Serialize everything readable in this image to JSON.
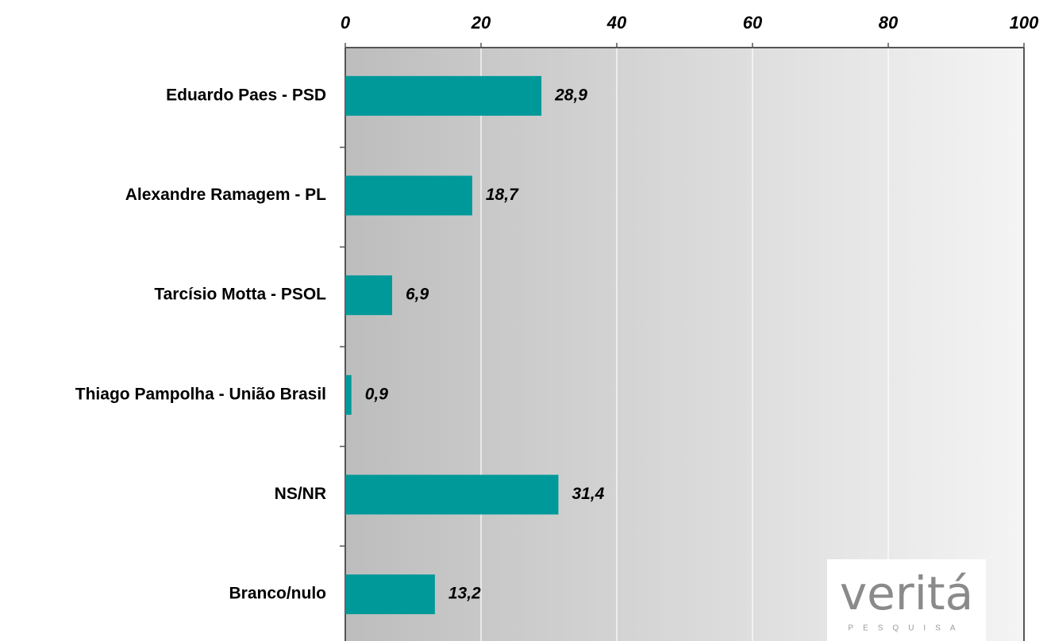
{
  "chart_data": {
    "type": "bar",
    "orientation": "horizontal",
    "categories": [
      "Eduardo Paes - PSD",
      "Alexandre Ramagem - PL",
      "Tarcísio Motta - PSOL",
      "Thiago Pampolha - União Brasil",
      "NS/NR",
      "Branco/nulo"
    ],
    "values": [
      28.9,
      18.7,
      6.9,
      0.9,
      31.4,
      13.2
    ],
    "value_labels": [
      "28,9",
      "18,7",
      "6,9",
      "0,9",
      "31,4",
      "13,2"
    ],
    "color": "#009999",
    "xlim": [
      0,
      100
    ],
    "xticks": [
      0,
      20,
      40,
      60,
      80,
      100
    ],
    "grid": true
  },
  "logo": {
    "text": "veritá",
    "subtext": "PESQUISA"
  }
}
